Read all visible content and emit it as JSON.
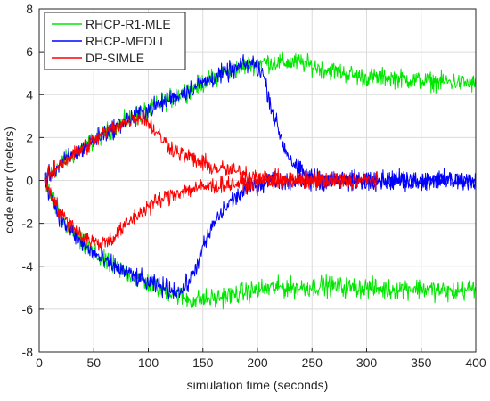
{
  "chart_data": {
    "type": "line",
    "title": "",
    "xlabel": "simulation time (seconds)",
    "ylabel": "code error (meters)",
    "xlim": [
      0,
      400
    ],
    "ylim": [
      -8,
      8
    ],
    "xticks": [
      0,
      50,
      100,
      150,
      200,
      250,
      300,
      350,
      400
    ],
    "yticks": [
      -8,
      -6,
      -4,
      -2,
      0,
      2,
      4,
      6,
      8
    ],
    "grid": true,
    "legend_position": "top-left",
    "series": [
      {
        "name": "RHCP-R1-MLE",
        "color": "#00e600",
        "traces": [
          {
            "x": [
              5,
              20,
              40,
              60,
              80,
              100,
              120,
              140,
              160,
              180,
              200,
              220,
              240,
              260,
              280,
              300,
              320,
              340,
              360,
              380,
              400
            ],
            "y": [
              0.0,
              0.8,
              1.5,
              2.2,
              2.8,
              3.3,
              3.8,
              4.3,
              4.8,
              5.2,
              5.5,
              5.5,
              5.5,
              5.2,
              5.0,
              4.8,
              4.8,
              4.7,
              4.6,
              4.6,
              4.5
            ],
            "noise": 0.65
          },
          {
            "x": [
              5,
              20,
              40,
              60,
              80,
              100,
              120,
              140,
              160,
              180,
              200,
              220,
              240,
              260,
              280,
              300,
              320,
              340,
              360,
              380,
              400
            ],
            "y": [
              0.0,
              -1.8,
              -3.0,
              -3.8,
              -4.3,
              -4.8,
              -5.2,
              -5.6,
              -5.5,
              -5.3,
              -5.1,
              -5.0,
              -5.0,
              -4.9,
              -5.0,
              -5.0,
              -5.1,
              -5.0,
              -5.1,
              -5.2,
              -5.0
            ],
            "noise": 0.7
          }
        ]
      },
      {
        "name": "RHCP-MEDLL",
        "color": "#0000ff",
        "traces": [
          {
            "x": [
              5,
              20,
              40,
              60,
              80,
              100,
              120,
              140,
              160,
              180,
              195,
              205,
              215,
              225,
              235,
              245,
              260,
              280,
              300,
              320,
              340,
              360,
              380,
              400
            ],
            "y": [
              0.0,
              0.8,
              1.5,
              2.2,
              2.8,
              3.3,
              3.8,
              4.3,
              4.8,
              5.2,
              5.5,
              5.0,
              3.0,
              1.5,
              0.6,
              0.2,
              0.0,
              0.0,
              0.0,
              0.0,
              0.0,
              0.0,
              0.0,
              0.0
            ],
            "noise": 0.65
          },
          {
            "x": [
              5,
              20,
              40,
              60,
              80,
              100,
              115,
              130,
              140,
              150,
              160,
              175,
              190,
              210,
              230,
              250,
              270,
              300,
              330,
              360,
              400
            ],
            "y": [
              0.0,
              -1.8,
              -3.0,
              -3.8,
              -4.3,
              -4.8,
              -5.0,
              -5.2,
              -4.5,
              -3.2,
              -2.0,
              -1.0,
              -0.4,
              0.0,
              0.0,
              0.0,
              0.0,
              0.0,
              0.0,
              0.0,
              0.0
            ],
            "noise": 0.65
          }
        ]
      },
      {
        "name": "DP-SIMLE",
        "color": "#ff0000",
        "traces": [
          {
            "x": [
              5,
              20,
              40,
              60,
              80,
              95,
              105,
              115,
              125,
              140,
              160,
              180,
              200,
              220,
              240,
              260,
              280
            ],
            "y": [
              0.0,
              0.8,
              1.5,
              2.2,
              2.8,
              3.0,
              2.4,
              1.8,
              1.4,
              1.0,
              0.6,
              0.4,
              0.2,
              0.0,
              0.0,
              0.0,
              0.0
            ],
            "noise": 0.6
          },
          {
            "x": [
              5,
              20,
              40,
              55,
              70,
              85,
              100,
              115,
              130,
              150,
              170,
              190,
              210,
              230,
              250,
              270,
              290,
              310
            ],
            "y": [
              0.0,
              -1.6,
              -2.6,
              -3.0,
              -2.6,
              -1.8,
              -1.2,
              -0.8,
              -0.5,
              -0.3,
              -0.2,
              -0.1,
              0.0,
              0.0,
              0.0,
              0.0,
              0.0,
              0.0
            ],
            "noise": 0.6
          }
        ]
      }
    ]
  }
}
